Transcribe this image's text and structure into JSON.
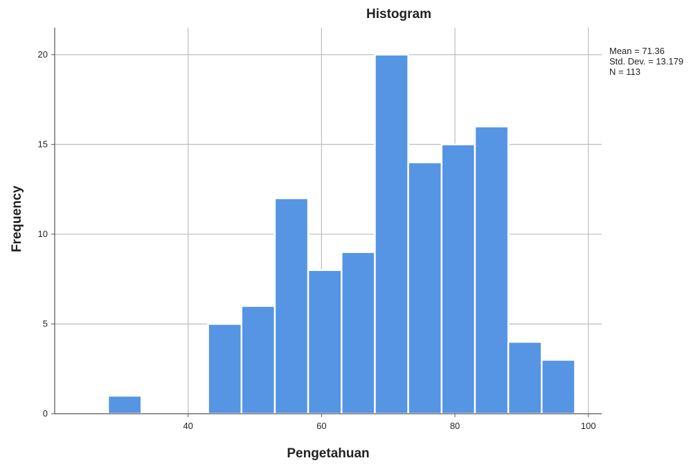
{
  "chart_data": {
    "type": "bar",
    "title": "Histogram",
    "xlabel": "Pengetahuan",
    "ylabel": "Frequency",
    "xlim": [
      20,
      102
    ],
    "ylim": [
      0,
      21.5
    ],
    "x_ticks": [
      40,
      60,
      80,
      100
    ],
    "y_ticks": [
      0,
      5,
      10,
      15,
      20
    ],
    "x_tick_labels": [
      "40",
      "60",
      "80",
      "100"
    ],
    "y_tick_labels": [
      "0",
      "5",
      "10",
      "15",
      "20"
    ],
    "bins": [
      {
        "start": 28,
        "end": 33,
        "count": 1
      },
      {
        "start": 33,
        "end": 38,
        "count": 0
      },
      {
        "start": 38,
        "end": 43,
        "count": 0
      },
      {
        "start": 43,
        "end": 48,
        "count": 5
      },
      {
        "start": 48,
        "end": 53,
        "count": 6
      },
      {
        "start": 53,
        "end": 58,
        "count": 12
      },
      {
        "start": 58,
        "end": 63,
        "count": 8
      },
      {
        "start": 63,
        "end": 68,
        "count": 9
      },
      {
        "start": 68,
        "end": 73,
        "count": 20
      },
      {
        "start": 73,
        "end": 78,
        "count": 14
      },
      {
        "start": 78,
        "end": 83,
        "count": 15
      },
      {
        "start": 83,
        "end": 88,
        "count": 16
      },
      {
        "start": 88,
        "end": 93,
        "count": 4
      },
      {
        "start": 93,
        "end": 98,
        "count": 3
      }
    ],
    "stats": {
      "mean_text": "Mean = 71.36",
      "std_text": "Std. Dev. = 13.179",
      "n_text": "N = 113"
    },
    "grid": true,
    "colors": {
      "bar": "#5694e4",
      "bar_edge": "#ffffff",
      "grid": "#bdbdbd",
      "axis": "#555555",
      "text": "#222222"
    }
  }
}
